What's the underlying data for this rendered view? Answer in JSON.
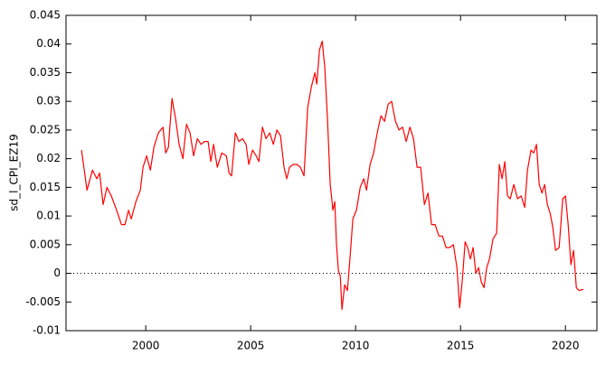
{
  "chart_data": {
    "type": "line",
    "ylabel": "sd_l_CPI_EZ19",
    "x": [
      1996.94,
      1997.2,
      1997.46,
      1997.67,
      1997.8,
      1997.97,
      1998.15,
      1998.36,
      1998.66,
      1998.84,
      1999.01,
      1999.18,
      1999.31,
      1999.53,
      1999.74,
      1999.87,
      2000.04,
      2000.22,
      2000.39,
      2000.6,
      2000.82,
      2000.95,
      2001.08,
      2001.25,
      2001.42,
      2001.59,
      2001.77,
      2001.94,
      2002.11,
      2002.28,
      2002.46,
      2002.63,
      2002.8,
      2002.97,
      2003.1,
      2003.23,
      2003.41,
      2003.62,
      2003.84,
      2003.97,
      2004.09,
      2004.27,
      2004.44,
      2004.61,
      2004.78,
      2004.91,
      2005.09,
      2005.26,
      2005.39,
      2005.56,
      2005.73,
      2005.91,
      2006.08,
      2006.25,
      2006.42,
      2006.59,
      2006.72,
      2006.85,
      2007.03,
      2007.2,
      2007.37,
      2007.54,
      2007.72,
      2007.89,
      2008.06,
      2008.15,
      2008.28,
      2008.41,
      2008.53,
      2008.66,
      2008.79,
      2008.92,
      2009.01,
      2009.09,
      2009.18,
      2009.27,
      2009.35,
      2009.48,
      2009.61,
      2009.74,
      2009.87,
      2010.04,
      2010.22,
      2010.39,
      2010.52,
      2010.69,
      2010.86,
      2011.03,
      2011.21,
      2011.38,
      2011.55,
      2011.72,
      2011.9,
      2012.07,
      2012.24,
      2012.41,
      2012.59,
      2012.76,
      2012.93,
      2013.1,
      2013.28,
      2013.45,
      2013.62,
      2013.79,
      2013.97,
      2014.14,
      2014.31,
      2014.48,
      2014.66,
      2014.83,
      2014.96,
      2015.09,
      2015.22,
      2015.34,
      2015.47,
      2015.6,
      2015.73,
      2015.86,
      2015.99,
      2016.12,
      2016.25,
      2016.38,
      2016.55,
      2016.72,
      2016.85,
      2016.98,
      2017.11,
      2017.24,
      2017.37,
      2017.54,
      2017.72,
      2017.89,
      2018.06,
      2018.19,
      2018.36,
      2018.49,
      2018.62,
      2018.75,
      2018.88,
      2019.01,
      2019.14,
      2019.27,
      2019.4,
      2019.53,
      2019.7,
      2019.87,
      2020.0,
      2020.13,
      2020.26,
      2020.39,
      2020.52,
      2020.65,
      2020.86
    ],
    "series": [
      {
        "name": "sd_l_CPI_EZ19",
        "color": "#ff0000",
        "values": [
          0.0215,
          0.0145,
          0.018,
          0.0165,
          0.0175,
          0.012,
          0.015,
          0.0135,
          0.0105,
          0.0085,
          0.0085,
          0.011,
          0.0095,
          0.0125,
          0.0145,
          0.0185,
          0.0205,
          0.018,
          0.022,
          0.0245,
          0.0255,
          0.021,
          0.022,
          0.0305,
          0.027,
          0.0225,
          0.02,
          0.026,
          0.0245,
          0.0205,
          0.0235,
          0.0225,
          0.023,
          0.023,
          0.0195,
          0.0225,
          0.0185,
          0.021,
          0.0205,
          0.0175,
          0.017,
          0.0245,
          0.023,
          0.0235,
          0.0225,
          0.019,
          0.0215,
          0.0205,
          0.0195,
          0.0255,
          0.0235,
          0.0245,
          0.0225,
          0.025,
          0.024,
          0.0185,
          0.0165,
          0.0185,
          0.019,
          0.019,
          0.0185,
          0.017,
          0.029,
          0.0325,
          0.035,
          0.033,
          0.039,
          0.0405,
          0.036,
          0.027,
          0.0155,
          0.011,
          0.0125,
          0.005,
          0.0005,
          -0.0005,
          -0.0063,
          -0.002,
          -0.003,
          0.003,
          0.0095,
          0.011,
          0.015,
          0.0165,
          0.0145,
          0.019,
          0.021,
          0.0245,
          0.0275,
          0.0265,
          0.0295,
          0.03,
          0.0265,
          0.025,
          0.0255,
          0.023,
          0.0255,
          0.0235,
          0.0185,
          0.0185,
          0.012,
          0.014,
          0.0085,
          0.0085,
          0.0065,
          0.0065,
          0.0045,
          0.0045,
          0.005,
          0.001,
          -0.006,
          -0.001,
          0.0055,
          0.0045,
          0.0025,
          0.0045,
          0.0,
          0.001,
          -0.0015,
          -0.0025,
          0.001,
          0.0025,
          0.006,
          0.007,
          0.019,
          0.0165,
          0.0195,
          0.0135,
          0.013,
          0.0155,
          0.013,
          0.0135,
          0.0115,
          0.018,
          0.0215,
          0.021,
          0.0225,
          0.0155,
          0.014,
          0.0155,
          0.012,
          0.0105,
          0.008,
          0.004,
          0.0045,
          0.013,
          0.0135,
          0.0085,
          0.0015,
          0.004,
          -0.0025,
          -0.003,
          -0.0028
        ]
      }
    ],
    "xlim": [
      1996.2,
      2021.5
    ],
    "xticks": [
      2000,
      2005,
      2010,
      2015,
      2020
    ],
    "ylim": [
      -0.01,
      0.045
    ],
    "yticks": [
      -0.01,
      -0.005,
      0,
      0.005,
      0.01,
      0.015,
      0.02,
      0.025,
      0.03,
      0.035,
      0.04,
      0.045
    ],
    "zero_line": true
  }
}
